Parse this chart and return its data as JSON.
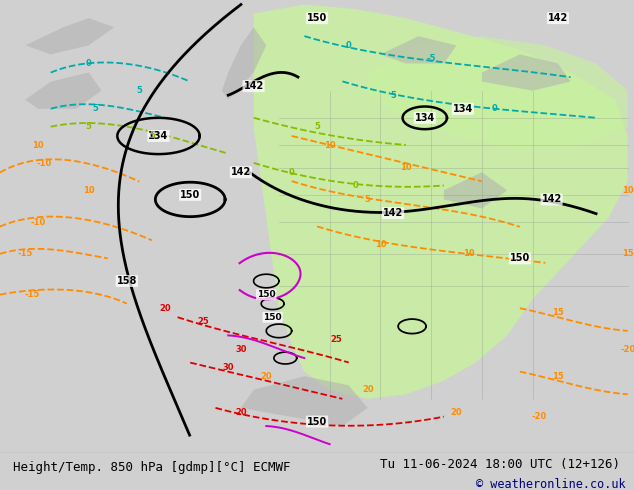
{
  "title_left": "Height/Temp. 850 hPa [gdmp][°C] ECMWF",
  "title_right": "Tu 11-06-2024 18:00 UTC (12+126)",
  "copyright": "© weatheronline.co.uk",
  "bg_color": "#d0d0d0",
  "map_bg_color": "#e0e0e0",
  "green_fill_color": "#c8f0a0",
  "fig_width": 6.34,
  "fig_height": 4.9,
  "dpi": 100,
  "bottom_bar_color": "#f0f0f0",
  "title_fontsize": 9.5,
  "copyright_color": "#000080",
  "black_contour_lw": 2.0,
  "temp_contour_lw": 1.3,
  "orange_color": "#FF8C00",
  "red_color": "#DD0000",
  "cyan_color": "#00AAAA",
  "lime_color": "#88BB00",
  "magenta_color": "#CC00CC"
}
